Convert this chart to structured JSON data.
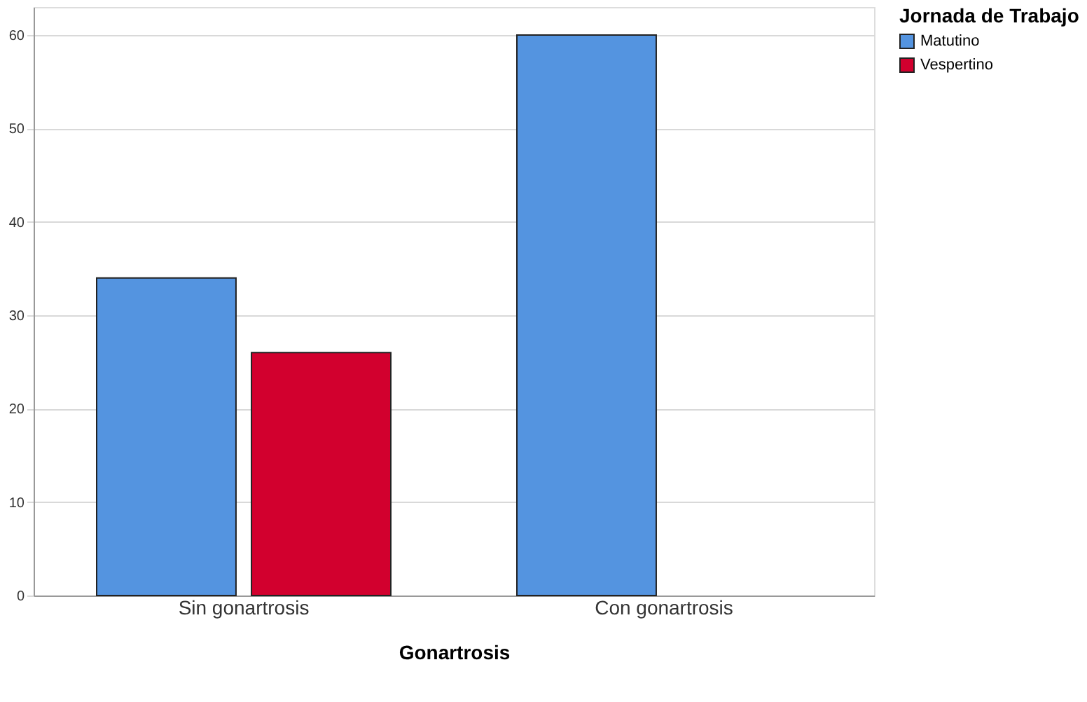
{
  "chart_data": {
    "type": "bar",
    "xlabel": "Gonartrosis",
    "legend_title": "Jornada de Trabajo",
    "categories": [
      "Sin gonartrosis",
      "Con gonartrosis"
    ],
    "series": [
      {
        "name": "Matutino",
        "color": "#5494e0",
        "values": [
          34,
          60
        ]
      },
      {
        "name": "Vespertino",
        "color": "#d2002e",
        "values": [
          26,
          null
        ]
      }
    ],
    "ylim": [
      0,
      63
    ],
    "yticks": [
      0,
      10,
      20,
      30,
      40,
      50,
      60
    ],
    "grid": "y",
    "legend": "top right"
  }
}
